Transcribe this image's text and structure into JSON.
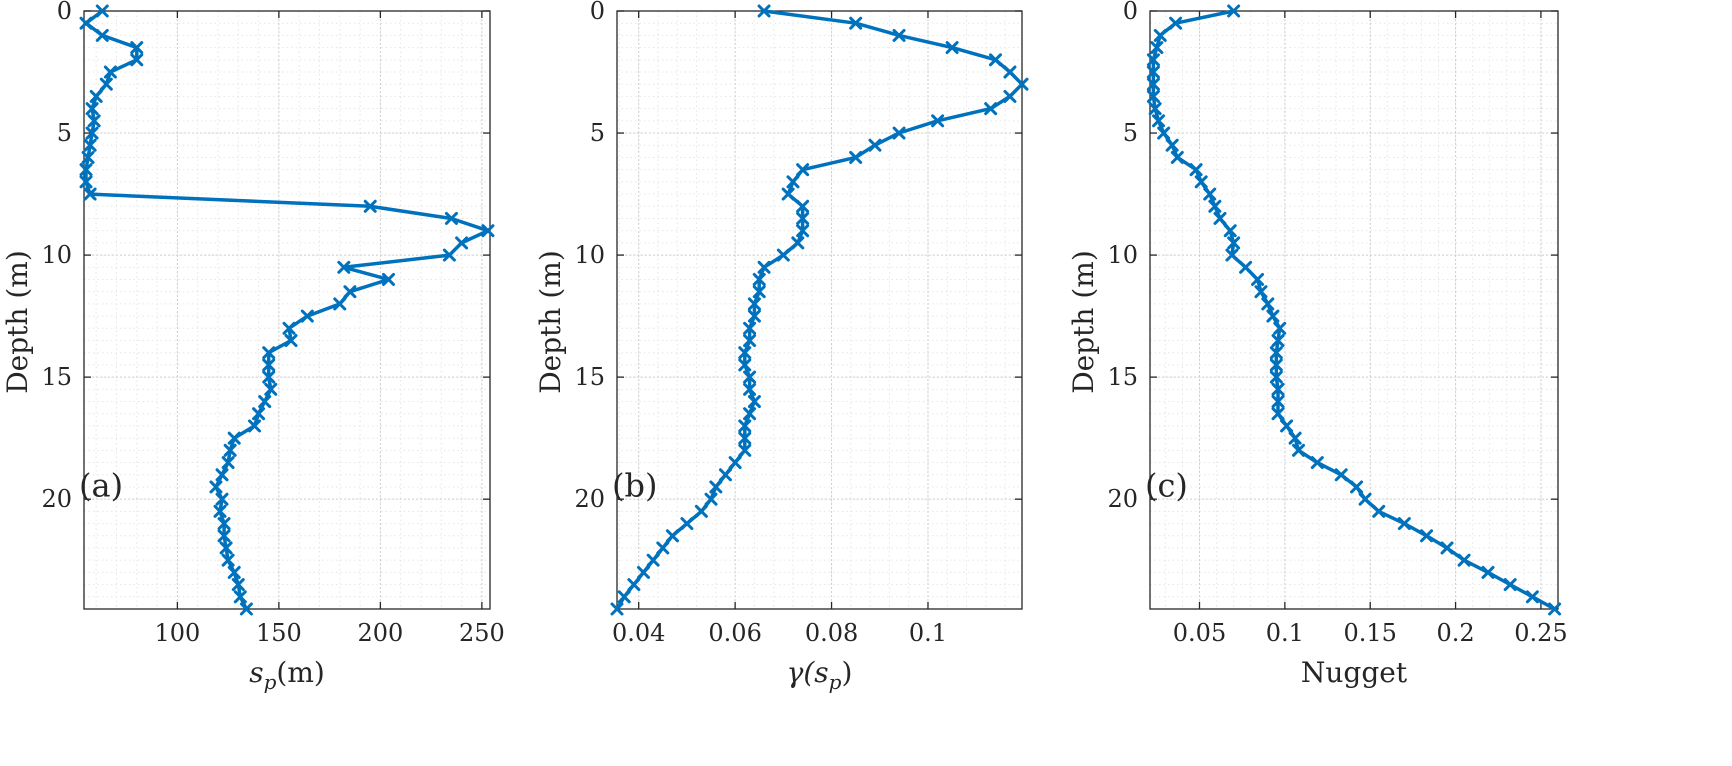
{
  "figure": {
    "line_color": "#0072BD",
    "grid_minor_color": "#e6e6e6",
    "grid_major_color": "#d0d0d0",
    "axis_color": "#262626"
  },
  "chart_data": [
    {
      "type": "line",
      "panel_label": "(a)",
      "xlabel": "s",
      "xlabel_sub": "p",
      "xlabel_suffix": "(m)",
      "ylabel": "Depth (m)",
      "xlim": [
        54,
        254
      ],
      "ylim": [
        0,
        24.5
      ],
      "y_reversed": true,
      "xticks": [
        100,
        150,
        200,
        250
      ],
      "xtick_labels": [
        "100",
        "150",
        "200",
        "250"
      ],
      "yticks": [
        0,
        5,
        10,
        15,
        20
      ],
      "ytick_labels": [
        "0",
        "5",
        "10",
        "15",
        "20"
      ],
      "grid": true,
      "minor_grid": true,
      "marker": "x",
      "points": [
        [
          63,
          0
        ],
        [
          55,
          0.5
        ],
        [
          63,
          1
        ],
        [
          80,
          1.5
        ],
        [
          80,
          2
        ],
        [
          67,
          2.5
        ],
        [
          65,
          3
        ],
        [
          60,
          3.5
        ],
        [
          58,
          4
        ],
        [
          59,
          4.5
        ],
        [
          58,
          5
        ],
        [
          57,
          5.5
        ],
        [
          56,
          6
        ],
        [
          55,
          6.5
        ],
        [
          55,
          7
        ],
        [
          57,
          7.5
        ],
        [
          195,
          8
        ],
        [
          235,
          8.5
        ],
        [
          253,
          9
        ],
        [
          240,
          9.5
        ],
        [
          234,
          10
        ],
        [
          182,
          10.5
        ],
        [
          204,
          11
        ],
        [
          185,
          11.5
        ],
        [
          180,
          12
        ],
        [
          164,
          12.5
        ],
        [
          155,
          13
        ],
        [
          156,
          13.5
        ],
        [
          145,
          14
        ],
        [
          145,
          14.5
        ],
        [
          145,
          15
        ],
        [
          146,
          15.5
        ],
        [
          143,
          16
        ],
        [
          140,
          16.5
        ],
        [
          138,
          17
        ],
        [
          128,
          17.5
        ],
        [
          126,
          18
        ],
        [
          125,
          18.5
        ],
        [
          122,
          19
        ],
        [
          119,
          19.5
        ],
        [
          122,
          20
        ],
        [
          121,
          20.5
        ],
        [
          123,
          21
        ],
        [
          123,
          21.5
        ],
        [
          124,
          22
        ],
        [
          125,
          22.5
        ],
        [
          128,
          23
        ],
        [
          130,
          23.5
        ],
        [
          131,
          24
        ],
        [
          134,
          24.5
        ]
      ]
    },
    {
      "type": "line",
      "panel_label": "(b)",
      "xlabel": "γ(s",
      "xlabel_sub": "p",
      "xlabel_suffix": ")",
      "ylabel": "Depth (m)",
      "xlim": [
        0.0355,
        0.1195
      ],
      "ylim": [
        0,
        24.5
      ],
      "y_reversed": true,
      "xticks": [
        0.04,
        0.06,
        0.08,
        0.1
      ],
      "xtick_labels": [
        "0.04",
        "0.06",
        "0.08",
        "0.1"
      ],
      "yticks": [
        0,
        5,
        10,
        15,
        20
      ],
      "ytick_labels": [
        "0",
        "5",
        "10",
        "15",
        "20"
      ],
      "grid": true,
      "minor_grid": true,
      "marker": "x",
      "points": [
        [
          0.066,
          0
        ],
        [
          0.085,
          0.5
        ],
        [
          0.094,
          1
        ],
        [
          0.105,
          1.5
        ],
        [
          0.114,
          2
        ],
        [
          0.117,
          2.5
        ],
        [
          0.1195,
          3
        ],
        [
          0.117,
          3.5
        ],
        [
          0.113,
          4
        ],
        [
          0.102,
          4.5
        ],
        [
          0.094,
          5
        ],
        [
          0.089,
          5.5
        ],
        [
          0.085,
          6
        ],
        [
          0.074,
          6.5
        ],
        [
          0.072,
          7
        ],
        [
          0.071,
          7.5
        ],
        [
          0.074,
          8
        ],
        [
          0.074,
          8.5
        ],
        [
          0.074,
          9
        ],
        [
          0.073,
          9.5
        ],
        [
          0.07,
          10
        ],
        [
          0.066,
          10.5
        ],
        [
          0.065,
          11
        ],
        [
          0.065,
          11.5
        ],
        [
          0.064,
          12
        ],
        [
          0.064,
          12.5
        ],
        [
          0.063,
          13
        ],
        [
          0.063,
          13.5
        ],
        [
          0.062,
          14
        ],
        [
          0.062,
          14.5
        ],
        [
          0.063,
          15
        ],
        [
          0.063,
          15.5
        ],
        [
          0.064,
          16
        ],
        [
          0.063,
          16.5
        ],
        [
          0.062,
          17
        ],
        [
          0.062,
          17.5
        ],
        [
          0.062,
          18
        ],
        [
          0.06,
          18.5
        ],
        [
          0.058,
          19
        ],
        [
          0.056,
          19.5
        ],
        [
          0.055,
          20
        ],
        [
          0.053,
          20.5
        ],
        [
          0.05,
          21
        ],
        [
          0.047,
          21.5
        ],
        [
          0.045,
          22
        ],
        [
          0.043,
          22.5
        ],
        [
          0.041,
          23
        ],
        [
          0.039,
          23.5
        ],
        [
          0.037,
          24
        ],
        [
          0.0355,
          24.5
        ]
      ]
    },
    {
      "type": "line",
      "panel_label": "(c)",
      "xlabel": "Nugget",
      "xlabel_sub": "",
      "xlabel_suffix": "",
      "ylabel": "Depth (m)",
      "xlim": [
        0.021,
        0.26
      ],
      "ylim": [
        0,
        24.5
      ],
      "y_reversed": true,
      "xticks": [
        0.05,
        0.1,
        0.15,
        0.2,
        0.25
      ],
      "xtick_labels": [
        "0.05",
        "0.1",
        "0.15",
        "0.2",
        "0.25"
      ],
      "yticks": [
        0,
        5,
        10,
        15,
        20
      ],
      "ytick_labels": [
        "0",
        "5",
        "10",
        "15",
        "20"
      ],
      "grid": true,
      "minor_grid": true,
      "marker": "x",
      "points": [
        [
          0.07,
          0
        ],
        [
          0.036,
          0.5
        ],
        [
          0.027,
          1
        ],
        [
          0.025,
          1.5
        ],
        [
          0.023,
          2
        ],
        [
          0.023,
          2.5
        ],
        [
          0.023,
          3
        ],
        [
          0.023,
          3.5
        ],
        [
          0.024,
          4
        ],
        [
          0.026,
          4.5
        ],
        [
          0.029,
          5
        ],
        [
          0.034,
          5.5
        ],
        [
          0.037,
          6
        ],
        [
          0.048,
          6.5
        ],
        [
          0.051,
          7
        ],
        [
          0.056,
          7.5
        ],
        [
          0.059,
          8
        ],
        [
          0.062,
          8.5
        ],
        [
          0.068,
          9
        ],
        [
          0.07,
          9.5
        ],
        [
          0.069,
          10
        ],
        [
          0.077,
          10.5
        ],
        [
          0.084,
          11
        ],
        [
          0.086,
          11.5
        ],
        [
          0.09,
          12
        ],
        [
          0.093,
          12.5
        ],
        [
          0.097,
          13
        ],
        [
          0.096,
          13.5
        ],
        [
          0.095,
          14
        ],
        [
          0.095,
          14.5
        ],
        [
          0.095,
          15
        ],
        [
          0.096,
          15.5
        ],
        [
          0.096,
          16
        ],
        [
          0.096,
          16.5
        ],
        [
          0.101,
          17
        ],
        [
          0.106,
          17.5
        ],
        [
          0.108,
          18
        ],
        [
          0.119,
          18.5
        ],
        [
          0.133,
          19
        ],
        [
          0.142,
          19.5
        ],
        [
          0.147,
          20
        ],
        [
          0.155,
          20.5
        ],
        [
          0.17,
          21
        ],
        [
          0.183,
          21.5
        ],
        [
          0.195,
          22
        ],
        [
          0.205,
          22.5
        ],
        [
          0.219,
          23
        ],
        [
          0.232,
          23.5
        ],
        [
          0.245,
          24
        ],
        [
          0.258,
          24.5
        ]
      ]
    }
  ]
}
